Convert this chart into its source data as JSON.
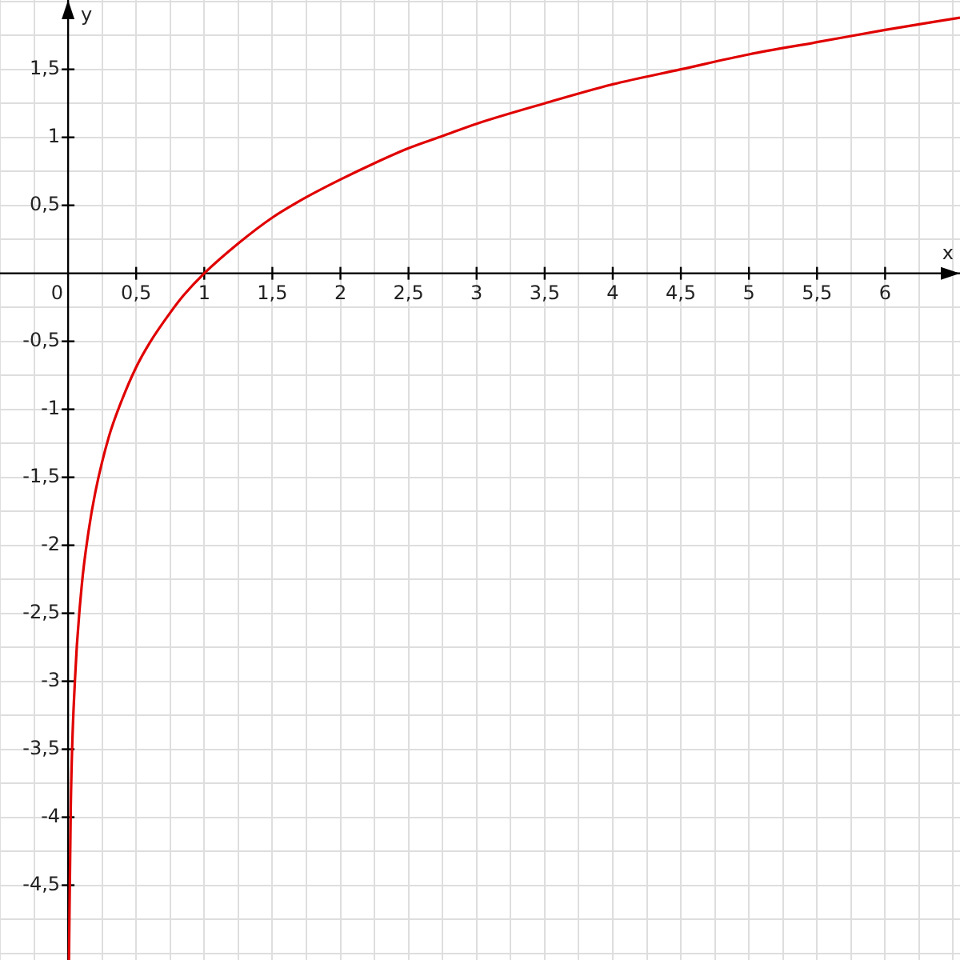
{
  "chart_data": {
    "type": "line",
    "xlabel": "x",
    "ylabel": "y",
    "color": "#e00000",
    "marker": "none",
    "grid": true,
    "legend": false,
    "x": [
      0.0064,
      0.02,
      0.05,
      0.1,
      0.15,
      0.2,
      0.3,
      0.4,
      0.5,
      0.6,
      0.75,
      0.85,
      1,
      1.25,
      1.5,
      1.75,
      2,
      2.25,
      2.5,
      2.75,
      3,
      3.5,
      4,
      4.5,
      5,
      5.5,
      6,
      6.55
    ],
    "values": [
      -5.05,
      -3.91,
      -3.0,
      -2.3,
      -1.9,
      -1.61,
      -1.2,
      -0.92,
      -0.69,
      -0.51,
      -0.29,
      -0.16,
      0,
      0.22,
      0.41,
      0.56,
      0.69,
      0.81,
      0.92,
      1.01,
      1.1,
      1.25,
      1.39,
      1.5,
      1.61,
      1.7,
      1.79,
      1.88
    ],
    "xlim": [
      -0.5,
      6.55
    ],
    "ylim": [
      -5.05,
      2.01
    ],
    "xticks": [
      {
        "value": -0.5,
        "label": null
      },
      {
        "value": -0.25,
        "label": null
      },
      0,
      {
        "value": 0.25,
        "label": null
      },
      {
        "value": 0.5,
        "label": "0,5"
      },
      {
        "value": 0.75,
        "label": null
      },
      1,
      {
        "value": 1.25,
        "label": null
      },
      {
        "value": 1.5,
        "label": "1,5"
      },
      {
        "value": 1.75,
        "label": null
      },
      2,
      {
        "value": 2.25,
        "label": null
      },
      {
        "value": 2.5,
        "label": "2,5"
      },
      {
        "value": 2.75,
        "label": null
      },
      3,
      {
        "value": 3.25,
        "label": null
      },
      {
        "value": 3.5,
        "label": "3,5"
      },
      {
        "value": 3.75,
        "label": null
      },
      4,
      {
        "value": 4.25,
        "label": null
      },
      {
        "value": 4.5,
        "label": "4,5"
      },
      {
        "value": 4.75,
        "label": null
      },
      5,
      {
        "value": 5.25,
        "label": null
      },
      {
        "value": 5.5,
        "label": "5,5"
      },
      {
        "value": 5.75,
        "label": null
      },
      6,
      {
        "value": 6.25,
        "label": null
      },
      {
        "value": 6.5,
        "label": null
      }
    ],
    "yticks": [
      {
        "value": -5,
        "label": null
      },
      {
        "value": -4.75,
        "label": null
      },
      {
        "value": -4.5,
        "label": "-4,5"
      },
      {
        "value": -4.25,
        "label": null
      },
      -4,
      {
        "value": -3.75,
        "label": null
      },
      {
        "value": -3.5,
        "label": "-3,5"
      },
      {
        "value": -3.25,
        "label": null
      },
      -3,
      {
        "value": -2.75,
        "label": null
      },
      {
        "value": -2.5,
        "label": "-2,5"
      },
      {
        "value": -2.25,
        "label": null
      },
      -2,
      {
        "value": -1.75,
        "label": null
      },
      {
        "value": -1.5,
        "label": "-1,5"
      },
      {
        "value": -1.25,
        "label": null
      },
      -1,
      {
        "value": -0.75,
        "label": null
      },
      {
        "value": -0.5,
        "label": "-0,5"
      },
      {
        "value": -0.25,
        "label": null
      },
      {
        "value": 0,
        "label": null
      },
      {
        "value": 0.25,
        "label": null
      },
      {
        "value": 0.5,
        "label": "0,5"
      },
      {
        "value": 0.75,
        "label": null
      },
      1,
      {
        "value": 1.25,
        "label": null
      },
      {
        "value": 1.5,
        "label": "1,5"
      },
      {
        "value": 1.75,
        "label": null
      },
      {
        "value": 2,
        "label": null
      }
    ]
  }
}
